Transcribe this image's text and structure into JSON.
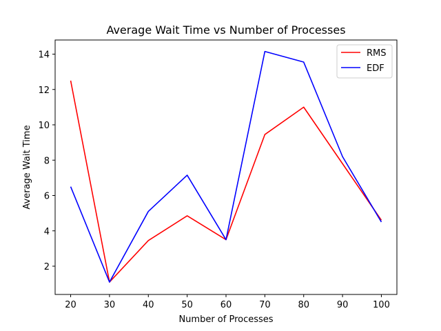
{
  "chart_data": {
    "type": "line",
    "title": "Average Wait Time vs Number of Processes",
    "xlabel": "Number of Processes",
    "ylabel": "Average Wait Time",
    "x": [
      20,
      30,
      40,
      50,
      60,
      70,
      80,
      90,
      100
    ],
    "xticks": [
      20,
      30,
      40,
      50,
      60,
      70,
      80,
      90,
      100
    ],
    "yticks": [
      2,
      4,
      6,
      8,
      10,
      12,
      14
    ],
    "xlim": [
      16,
      104
    ],
    "ylim": [
      0.4,
      14.8
    ],
    "grid": false,
    "legend_position": "top-right",
    "series": [
      {
        "name": "RMS",
        "color": "#ff0000",
        "values": [
          12.5,
          1.1,
          3.45,
          4.85,
          3.5,
          9.45,
          11.0,
          7.8,
          4.6
        ]
      },
      {
        "name": "EDF",
        "color": "#0000ff",
        "values": [
          6.5,
          1.1,
          5.1,
          7.15,
          3.5,
          14.15,
          13.55,
          8.2,
          4.5
        ]
      }
    ]
  }
}
